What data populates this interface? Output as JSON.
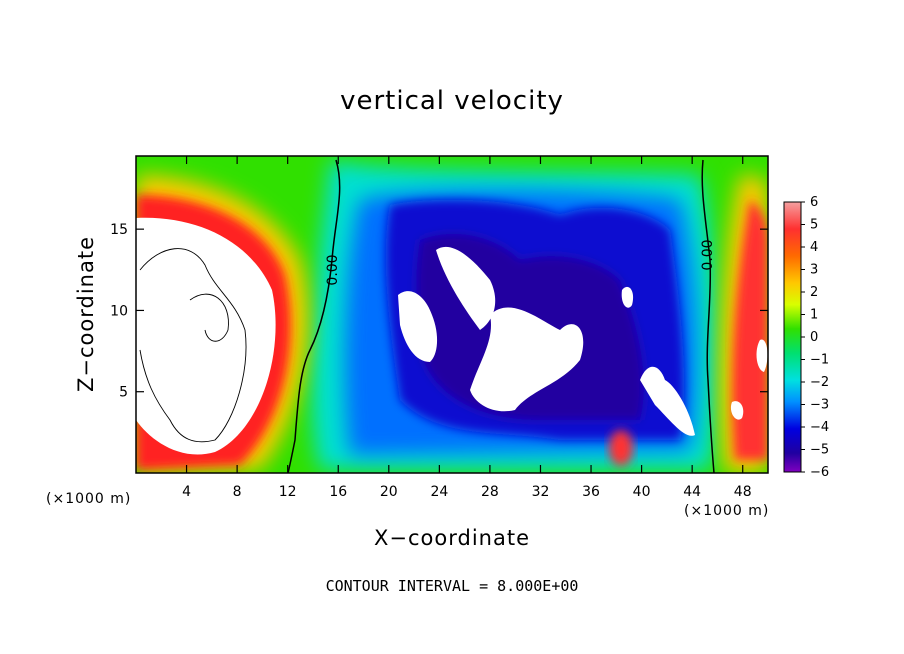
{
  "chart_data": {
    "type": "heatmap",
    "title": "vertical velocity",
    "xlabel": "X−coordinate",
    "ylabel": "Z−coordinate",
    "x_unit": "(×1000 m)",
    "y_unit": "(×1000 m)",
    "footer": "CONTOUR INTERVAL = 8.000E+00",
    "xlim": [
      0,
      50
    ],
    "ylim": [
      0,
      19.5
    ],
    "x_ticks": [
      4,
      8,
      12,
      16,
      20,
      24,
      28,
      32,
      36,
      40,
      44,
      48
    ],
    "y_ticks": [
      5,
      10,
      15
    ],
    "colorbar": {
      "ticks": [
        6,
        5,
        4,
        3,
        2,
        1,
        0,
        -1,
        -2,
        -3,
        -4,
        -5,
        -6
      ],
      "tick_labels": [
        "6",
        "5",
        "4",
        "3",
        "2",
        "1",
        "0",
        "−1",
        "−2",
        "−3",
        "−4",
        "−5",
        "−6"
      ],
      "range": [
        -6,
        6
      ]
    },
    "contour_labels": [
      "0.00",
      "0.00"
    ],
    "colors": {
      "strong_up": "#f08080",
      "up": "#ff0000",
      "mid_up": "#ffa500",
      "weak_up": "#ffff00",
      "zero": "#00c800",
      "weak_down": "#00e0e0",
      "down": "#0000ff",
      "strong_down": "#8000c0",
      "saturated": "#ffffff"
    }
  }
}
